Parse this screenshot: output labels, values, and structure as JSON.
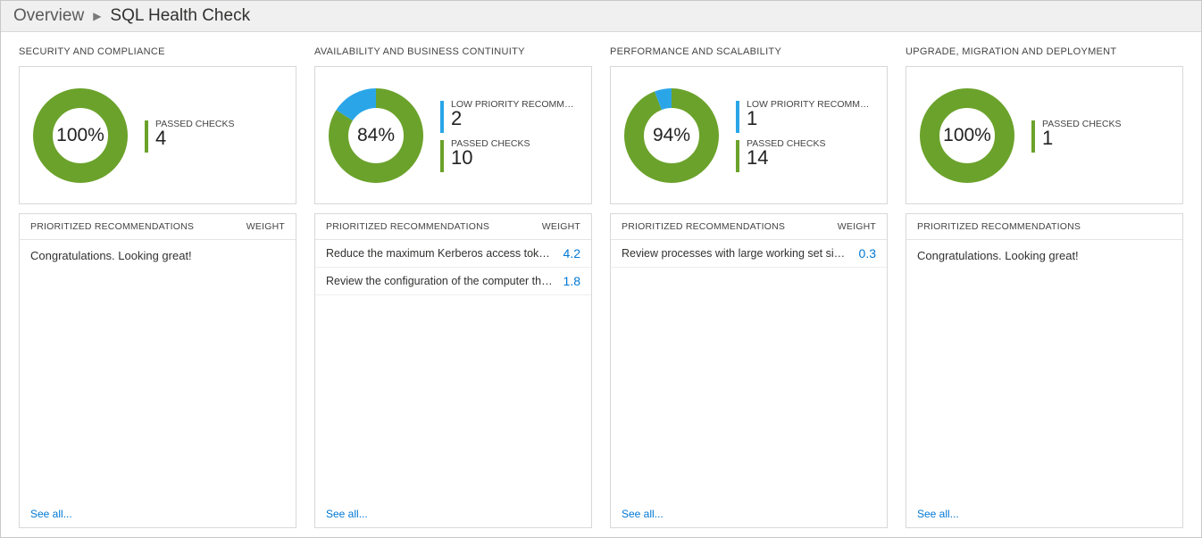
{
  "breadcrumb": {
    "root": "Overview",
    "current": "SQL Health Check"
  },
  "colors": {
    "green": "#6ba22b",
    "blue": "#2aa6e8",
    "link": "#0078d4",
    "border": "#d8d8d8",
    "text": "#323130"
  },
  "labels": {
    "prioritized": "PRIORITIZED RECOMMENDATIONS",
    "weight": "WEIGHT",
    "see_all": "See all...",
    "congrats": "Congratulations. Looking great!",
    "low_priority": "LOW PRIORITY RECOMMENDATIO...",
    "passed": "PASSED CHECKS"
  },
  "panels": [
    {
      "id": "security",
      "title": "SECURITY AND COMPLIANCE",
      "donut": {
        "pct_label": "100%",
        "green_pct": 100,
        "blue_pct": 0
      },
      "stats": [
        {
          "type": "passed",
          "value": "4"
        }
      ],
      "recommendations": {
        "mode": "congrats",
        "rows": []
      },
      "show_weight_col": true
    },
    {
      "id": "availability",
      "title": "AVAILABILITY AND BUSINESS CONTINUITY",
      "donut": {
        "pct_label": "84%",
        "green_pct": 84,
        "blue_pct": 16
      },
      "stats": [
        {
          "type": "low",
          "value": "2"
        },
        {
          "type": "passed",
          "value": "10"
        }
      ],
      "recommendations": {
        "mode": "rows",
        "rows": [
          {
            "text": "Reduce the maximum Kerberos access token size.",
            "weight": "4.2"
          },
          {
            "text": "Review the configuration of the computer that is rep...",
            "weight": "1.8"
          }
        ]
      },
      "show_weight_col": true
    },
    {
      "id": "performance",
      "title": "PERFORMANCE AND SCALABILITY",
      "donut": {
        "pct_label": "94%",
        "green_pct": 94,
        "blue_pct": 6
      },
      "stats": [
        {
          "type": "low",
          "value": "1"
        },
        {
          "type": "passed",
          "value": "14"
        }
      ],
      "recommendations": {
        "mode": "rows",
        "rows": [
          {
            "text": "Review processes with large working set sizes.",
            "weight": "0.3"
          }
        ]
      },
      "show_weight_col": true
    },
    {
      "id": "upgrade",
      "title": "UPGRADE, MIGRATION AND DEPLOYMENT",
      "donut": {
        "pct_label": "100%",
        "green_pct": 100,
        "blue_pct": 0
      },
      "stats": [
        {
          "type": "passed",
          "value": "1"
        }
      ],
      "recommendations": {
        "mode": "congrats",
        "rows": []
      },
      "show_weight_col": false
    }
  ]
}
